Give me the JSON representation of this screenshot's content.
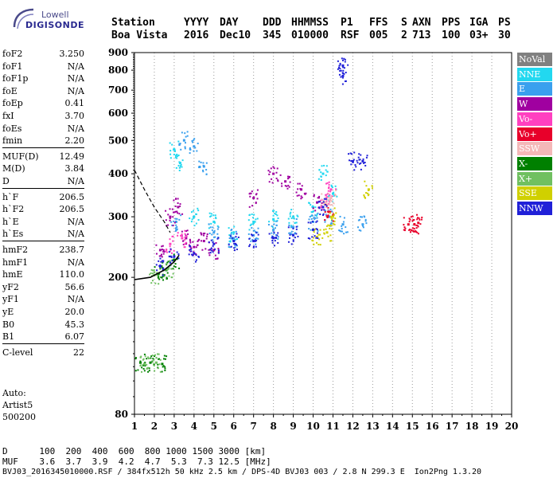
{
  "logo": {
    "line1": "Lowell",
    "line2": "DIGISONDE"
  },
  "header": {
    "labels": [
      "Station",
      "YYYY",
      "DAY",
      "DDD",
      "HHMMSS",
      "P1",
      "FFS",
      "S",
      "AXN",
      "PPS",
      "IGA",
      "PS"
    ],
    "values": [
      "Boa Vista",
      "2016",
      "Dec10",
      "345",
      "010000",
      "RSF",
      "005",
      "2",
      "713",
      "100",
      "03+",
      "30"
    ]
  },
  "params": [
    {
      "name": "foF2",
      "value": "3.250"
    },
    {
      "name": "foF1",
      "value": "N/A"
    },
    {
      "name": "foF1p",
      "value": "N/A"
    },
    {
      "name": "foE",
      "value": "N/A"
    },
    {
      "name": "foEp",
      "value": "0.41"
    },
    {
      "name": "fxI",
      "value": "3.70"
    },
    {
      "name": "foEs",
      "value": "N/A"
    },
    {
      "name": "fmin",
      "value": "2.20"
    },
    {
      "name": "MUF(D)",
      "value": "12.49"
    },
    {
      "name": "M(D)",
      "value": "3.84"
    },
    {
      "name": "D",
      "value": "N/A"
    },
    {
      "name": "h`F",
      "value": "206.5"
    },
    {
      "name": "h`F2",
      "value": "206.5"
    },
    {
      "name": "h`E",
      "value": "N/A"
    },
    {
      "name": "h`Es",
      "value": "N/A"
    },
    {
      "name": "hmF2",
      "value": "238.7"
    },
    {
      "name": "hmF1",
      "value": "N/A"
    },
    {
      "name": "hmE",
      "value": "110.0"
    },
    {
      "name": "yF2",
      "value": "56.6"
    },
    {
      "name": "yF1",
      "value": "N/A"
    },
    {
      "name": "yE",
      "value": "20.0"
    },
    {
      "name": "B0",
      "value": "45.3"
    },
    {
      "name": "B1",
      "value": "6.07"
    },
    {
      "name": "C-level",
      "value": "22"
    }
  ],
  "auto": {
    "line1": "Auto:",
    "line2": "Artist5",
    "line3": "500200"
  },
  "legend": [
    {
      "label": "NoVal",
      "color": "#808080"
    },
    {
      "label": "NNE",
      "color": "#22d8f0"
    },
    {
      "label": "E",
      "color": "#3aa0ee"
    },
    {
      "label": "W",
      "color": "#a000a0"
    },
    {
      "label": "Vo-",
      "color": "#ff40c0"
    },
    {
      "label": "Vo+",
      "color": "#e8002a"
    },
    {
      "label": "SSW",
      "color": "#f4b8b8"
    },
    {
      "label": "X-",
      "color": "#008000"
    },
    {
      "label": "X+",
      "color": "#70c060"
    },
    {
      "label": "SSE",
      "color": "#d0d000"
    },
    {
      "label": "NNW",
      "color": "#2020d8"
    }
  ],
  "footer": {
    "d_row": "D      100  200  400  600  800 1000 1500 3000 [km]",
    "muf_row": "MUF    3.6  3.7  3.9  4.2  4.7  5.3  7.3 12.5 [MHz]",
    "file_row": "BVJ03_2016345010000.RSF / 384fx512h 50 kHz 2.5 km / DPS-4D BVJ03 003 / 2.8 N 299.3 E  Ion2Png 1.3.20"
  },
  "chart_data": {
    "type": "scatter",
    "x_ticks": [
      "1",
      "2",
      "3",
      "4",
      "5",
      "6",
      "7",
      "8",
      "9",
      "10",
      "11",
      "12",
      "13",
      "14",
      "15",
      "16",
      "17",
      "18",
      "19",
      "20"
    ],
    "y_ticks": [
      "80",
      "200",
      "300",
      "400",
      "500",
      "600",
      "700",
      "800",
      "900"
    ],
    "xlim": [
      1,
      20
    ],
    "ylim": [
      80,
      900
    ],
    "y_scale": "log",
    "grid": "dotted vertical at each MHz",
    "series": [
      {
        "name": "NNE",
        "points": [
          [
            3.0,
            470
          ],
          [
            3.3,
            430
          ],
          [
            4.0,
            300
          ],
          [
            5.0,
            290
          ],
          [
            6.0,
            270
          ],
          [
            7.0,
            290
          ],
          [
            8.0,
            295
          ],
          [
            9.0,
            300
          ],
          [
            10.0,
            320
          ],
          [
            10.5,
            400
          ],
          [
            11.0,
            350
          ]
        ]
      },
      {
        "name": "E",
        "points": [
          [
            3.1,
            290
          ],
          [
            3.5,
            500
          ],
          [
            4.0,
            480
          ],
          [
            4.5,
            420
          ],
          [
            5.0,
            270
          ],
          [
            6.0,
            260
          ],
          [
            7.0,
            265
          ],
          [
            8.0,
            275
          ],
          [
            9.0,
            280
          ],
          [
            10.0,
            290
          ],
          [
            10.8,
            300
          ],
          [
            11.5,
            285
          ],
          [
            12.5,
            285
          ]
        ]
      },
      {
        "name": "W",
        "points": [
          [
            2.3,
            240
          ],
          [
            2.8,
            300
          ],
          [
            3.2,
            320
          ],
          [
            3.6,
            260
          ],
          [
            4.0,
            245
          ],
          [
            4.5,
            255
          ],
          [
            5.0,
            240
          ],
          [
            7.0,
            340
          ],
          [
            8.0,
            400
          ],
          [
            8.6,
            380
          ],
          [
            9.4,
            360
          ],
          [
            10.2,
            330
          ]
        ]
      },
      {
        "name": "Vo-",
        "points": [
          [
            2.8,
            250
          ],
          [
            3.4,
            260
          ],
          [
            10.6,
            330
          ],
          [
            10.9,
            360
          ]
        ]
      },
      {
        "name": "Vo+",
        "points": [
          [
            14.8,
            285
          ],
          [
            15.1,
            285
          ],
          [
            15.3,
            288
          ],
          [
            10.8,
            310
          ]
        ]
      },
      {
        "name": "SSW",
        "points": [
          [
            10.6,
            330
          ],
          [
            10.9,
            340
          ]
        ]
      },
      {
        "name": "X-",
        "points": [
          [
            2.2,
            205
          ],
          [
            2.6,
            210
          ],
          [
            3.0,
            225
          ],
          [
            1.3,
            113
          ],
          [
            1.8,
            113
          ],
          [
            2.4,
            112
          ]
        ]
      },
      {
        "name": "X+",
        "points": [
          [
            2.0,
            203
          ],
          [
            2.7,
            212
          ],
          [
            1.5,
            112
          ],
          [
            2.1,
            113
          ]
        ]
      },
      {
        "name": "SSE",
        "points": [
          [
            10.2,
            262
          ],
          [
            10.7,
            270
          ],
          [
            11.0,
            300
          ],
          [
            12.8,
            360
          ]
        ]
      },
      {
        "name": "NNW",
        "points": [
          [
            2.3,
            215
          ],
          [
            3.0,
            230
          ],
          [
            4.0,
            235
          ],
          [
            5.0,
            250
          ],
          [
            6.0,
            255
          ],
          [
            7.0,
            255
          ],
          [
            8.0,
            260
          ],
          [
            9.0,
            265
          ],
          [
            10.0,
            275
          ],
          [
            10.5,
            320
          ],
          [
            11.5,
            825
          ],
          [
            11.5,
            770
          ],
          [
            12.0,
            435
          ],
          [
            12.5,
            435
          ]
        ]
      }
    ],
    "trace": {
      "name": "profile",
      "points": [
        [
          1.0,
          410
        ],
        [
          1.5,
          360
        ],
        [
          2.0,
          320
        ],
        [
          2.5,
          290
        ],
        [
          2.8,
          270
        ]
      ]
    },
    "profile_curve": {
      "points": [
        [
          1.0,
          197
        ],
        [
          1.8,
          200
        ],
        [
          2.5,
          210
        ],
        [
          3.0,
          222
        ],
        [
          3.25,
          232
        ]
      ]
    }
  }
}
